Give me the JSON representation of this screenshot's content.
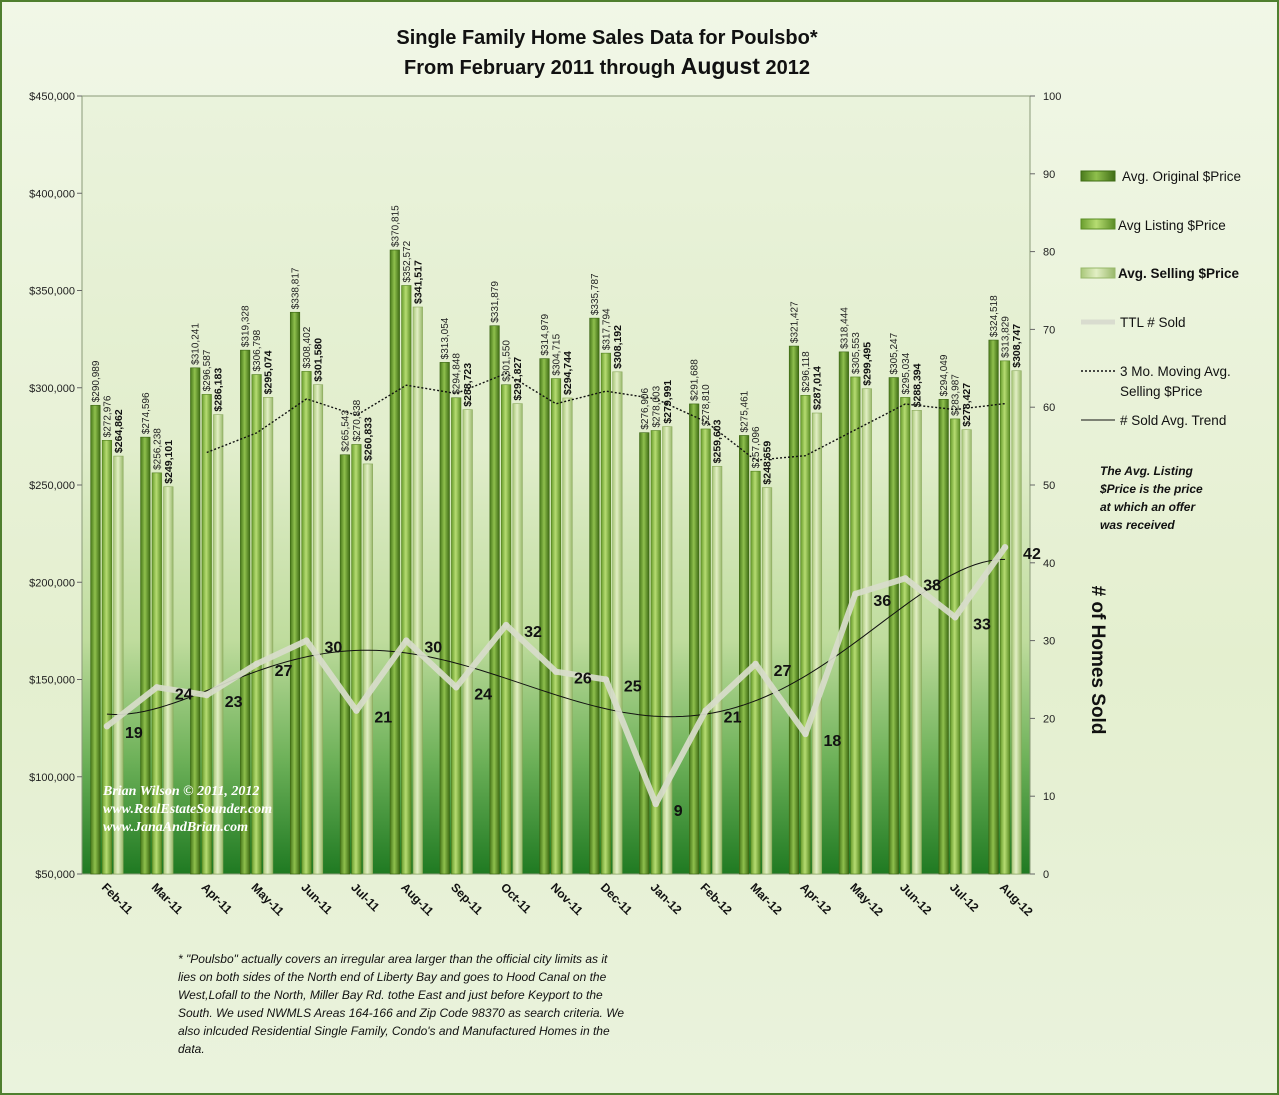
{
  "chart_data": {
    "type": "bar",
    "title_line1": "Single Family Home Sales Data for Poulsbo*",
    "title_line2_prefix": "From February 2011  through ",
    "title_line2_month": "August",
    "title_line2_year": " 2012",
    "categories": [
      "Feb-11",
      "Mar-11",
      "Apr-11",
      "May-11",
      "Jun-11",
      "Jul-11",
      "Aug-11",
      "Sep-11",
      "Oct-11",
      "Nov-11",
      "Dec-11",
      "Jan-12",
      "Feb-12",
      "Mar-12",
      "Apr-12",
      "May-12",
      "Jun-12",
      "Jul-12",
      "Aug-12"
    ],
    "ylim": [
      50000,
      450000
    ],
    "yticks": [
      "$50,000",
      "$100,000",
      "$150,000",
      "$200,000",
      "$250,000",
      "$300,000",
      "$350,000",
      "$400,000",
      "$450,000"
    ],
    "y2lim": [
      0,
      100
    ],
    "y2ticks": [
      "0",
      "10",
      "20",
      "30",
      "40",
      "50",
      "60",
      "70",
      "80",
      "90",
      "100"
    ],
    "y2label": "# of Homes Sold",
    "series": [
      {
        "name": "Avg. Original $Price",
        "color": "#5b8f2a",
        "values": [
          290989,
          274596,
          310241,
          319328,
          338817,
          265543,
          370815,
          313054,
          331879,
          314979,
          335787,
          276906,
          291688,
          275461,
          321427,
          318444,
          305247,
          294049,
          324518
        ],
        "labels": [
          "$290,989",
          "$274,596",
          "$310,241",
          "$319,328",
          "$338,817",
          "$265,543",
          "$370,815",
          "$313,054",
          "$331,879",
          "$314,979",
          "$335,787",
          "$276,906",
          "$291,688",
          "$275,461",
          "$321,427",
          "$318,444",
          "$305,247",
          "$294,049",
          "$324,518"
        ]
      },
      {
        "name": "Avg Listing $Price",
        "color": "#7fb33d",
        "values": [
          272976,
          256238,
          296587,
          306798,
          308402,
          270838,
          352572,
          294848,
          301550,
          304715,
          317794,
          278003,
          278810,
          257096,
          296118,
          305553,
          295034,
          283987,
          313829
        ],
        "labels": [
          "$272,976",
          "$256,238",
          "$296,587",
          "$306,798",
          "$308,402",
          "$270,838",
          "$352,572",
          "$294,848",
          "$301,550",
          "$304,715",
          "$317,794",
          "$278,003",
          "$278,810",
          "$257,096",
          "$296,118",
          "$305,553",
          "$295,034",
          "$283,987",
          "$313,829"
        ]
      },
      {
        "name": "Avg. Selling $Price",
        "color": "#b9d486",
        "values": [
          264862,
          249101,
          286183,
          295074,
          301580,
          260833,
          341517,
          288723,
          291827,
          294744,
          308192,
          279991,
          259603,
          248659,
          287014,
          299495,
          288394,
          278427,
          308747
        ],
        "labels": [
          "$264,862",
          "$249,101",
          "$286,183",
          "$295,074",
          "$301,580",
          "$260,833",
          "$341,517",
          "$288,723",
          "$291,827",
          "$294,744",
          "$308,192",
          "$279,991",
          "$259,603",
          "$248,659",
          "$287,014",
          "$299,495",
          "$288,394",
          "$278,427",
          "$308,747"
        ]
      }
    ],
    "sold_series": {
      "name": "TTL # Sold",
      "values": [
        19,
        24,
        23,
        27,
        30,
        21,
        30,
        24,
        32,
        26,
        25,
        9,
        21,
        27,
        18,
        36,
        38,
        33,
        42
      ],
      "labels": [
        "19",
        "24",
        "23",
        "27",
        "30",
        "21",
        "30",
        "24",
        "32",
        "26",
        "25",
        "9",
        "21",
        "27",
        "18",
        "36",
        "38",
        "33",
        "42"
      ]
    },
    "moving_avg_name_line1": "3 Mo. Moving Avg.",
    "moving_avg_name_line2": "Selling $Price",
    "trend_name": "# Sold Avg. Trend",
    "note_lines": [
      "The Avg. Listing",
      "$Price is the price",
      "at which an offer",
      "was received"
    ],
    "watermark_lines": [
      "Brian Wilson  © 2011, 2012",
      "www.RealEstateSounder.com",
      "www.JanaAndBrian.com"
    ],
    "footnote_lines": [
      "* \"Poulsbo\"  actually covers an irregular area larger than the official city limits  as it",
      "lies on both sides of the North end of Liberty Bay and goes to Hood Canal on the",
      "West,Lofall to the North, Miller Bay Rd. tothe East and just before Keyport to the",
      "South.  We used NWMLS Areas 164-166  and Zip Code 98370  as search criteria.  We",
      "also inlcuded Residential Single Family, Condo's and Manufactured Homes in the",
      "data."
    ],
    "grid": false,
    "legend_position": "right"
  }
}
